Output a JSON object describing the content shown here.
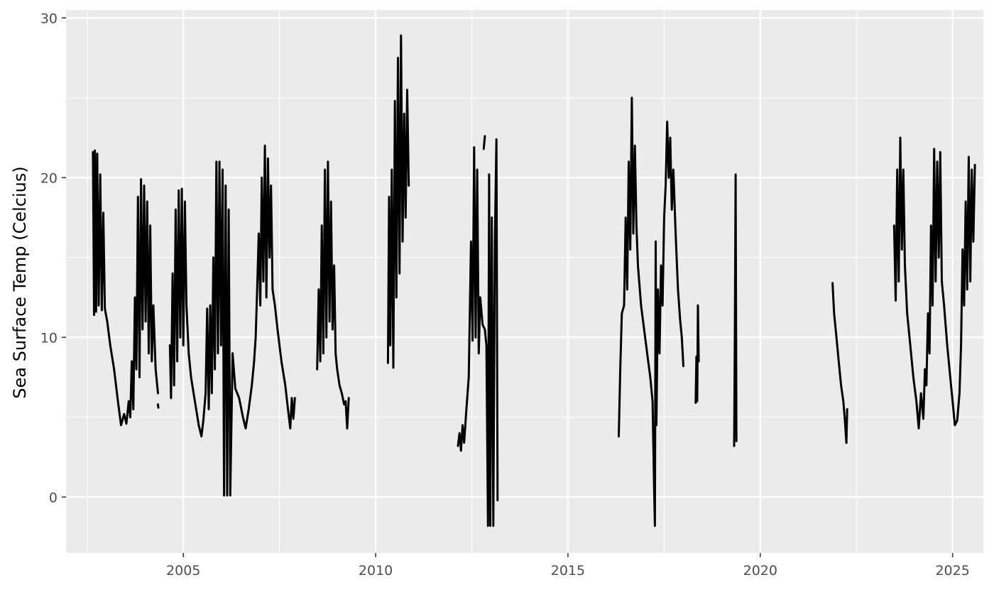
{
  "chart_data": {
    "type": "line",
    "title": "",
    "xlabel": "",
    "ylabel": "Sea Surface Temp (Celcius)",
    "xlim": [
      2001.95,
      2025.8
    ],
    "ylim": [
      -3.5,
      30.5
    ],
    "x_ticks": [
      2005,
      2010,
      2015,
      2020,
      2025
    ],
    "x_tick_labels": [
      "2005",
      "2010",
      "2015",
      "2020",
      "2025"
    ],
    "y_ticks": [
      0,
      10,
      20,
      30
    ],
    "y_tick_labels": [
      "0",
      "10",
      "20",
      "30"
    ],
    "grid": true,
    "legend": "none",
    "colors": {
      "panel": "#ebebeb",
      "grid": "#ffffff",
      "line": "#000000",
      "tick_text": "#4d4d4d"
    },
    "series": [
      {
        "segments": [
          [
            [
              2002.65,
              21.6
            ],
            [
              2002.68,
              11.4
            ],
            [
              2002.7,
              21.7
            ],
            [
              2002.73,
              11.6
            ],
            [
              2002.76,
              21.5
            ],
            [
              2002.8,
              12.0
            ],
            [
              2002.84,
              20.2
            ],
            [
              2002.88,
              11.7
            ],
            [
              2002.92,
              17.8
            ],
            [
              2002.96,
              11.8
            ],
            [
              2003.02,
              11.0
            ],
            [
              2003.1,
              9.5
            ],
            [
              2003.2,
              8.0
            ],
            [
              2003.3,
              6.0
            ],
            [
              2003.38,
              4.5
            ],
            [
              2003.46,
              5.2
            ],
            [
              2003.52,
              4.6
            ],
            [
              2003.58,
              6.0
            ],
            [
              2003.62,
              5.0
            ],
            [
              2003.66,
              8.5
            ],
            [
              2003.7,
              5.5
            ],
            [
              2003.74,
              12.5
            ],
            [
              2003.78,
              8.0
            ],
            [
              2003.82,
              18.8
            ],
            [
              2003.86,
              7.5
            ],
            [
              2003.9,
              19.9
            ],
            [
              2003.94,
              10.5
            ],
            [
              2003.98,
              19.5
            ],
            [
              2004.02,
              11.0
            ],
            [
              2004.06,
              18.5
            ],
            [
              2004.1,
              9.0
            ],
            [
              2004.14,
              17.0
            ],
            [
              2004.18,
              8.5
            ],
            [
              2004.22,
              12.0
            ],
            [
              2004.28,
              8.0
            ],
            [
              2004.34,
              6.5
            ]
          ],
          [
            [
              2004.34,
              5.8
            ],
            [
              2004.35,
              5.6
            ]
          ],
          [
            [
              2004.65,
              9.5
            ],
            [
              2004.68,
              6.2
            ],
            [
              2004.72,
              14.0
            ],
            [
              2004.76,
              7.0
            ],
            [
              2004.8,
              18.0
            ],
            [
              2004.84,
              8.5
            ],
            [
              2004.88,
              19.2
            ],
            [
              2004.92,
              10.0
            ],
            [
              2004.96,
              19.3
            ],
            [
              2005.0,
              9.5
            ],
            [
              2005.04,
              18.5
            ],
            [
              2005.08,
              12.0
            ],
            [
              2005.14,
              9.0
            ],
            [
              2005.2,
              7.5
            ],
            [
              2005.3,
              6.0
            ],
            [
              2005.4,
              4.5
            ],
            [
              2005.47,
              3.8
            ],
            [
              2005.52,
              4.8
            ],
            [
              2005.58,
              6.5
            ],
            [
              2005.62,
              11.8
            ],
            [
              2005.66,
              5.5
            ],
            [
              2005.7,
              12.0
            ],
            [
              2005.74,
              6.5
            ],
            [
              2005.78,
              15.0
            ],
            [
              2005.82,
              8.0
            ],
            [
              2005.86,
              21.0
            ],
            [
              2005.9,
              9.0
            ],
            [
              2005.94,
              21.0
            ],
            [
              2005.98,
              9.5
            ],
            [
              2006.02,
              20.5
            ],
            [
              2006.06,
              0.1
            ],
            [
              2006.1,
              19.5
            ],
            [
              2006.14,
              0.1
            ],
            [
              2006.18,
              18.0
            ],
            [
              2006.22,
              0.1
            ],
            [
              2006.28,
              9.0
            ],
            [
              2006.35,
              6.8
            ],
            [
              2006.45,
              6.2
            ],
            [
              2006.55,
              5.0
            ],
            [
              2006.62,
              4.3
            ],
            [
              2006.7,
              5.5
            ],
            [
              2006.78,
              7.0
            ],
            [
              2006.84,
              8.5
            ],
            [
              2006.88,
              10.0
            ],
            [
              2006.92,
              13.0
            ],
            [
              2006.96,
              16.5
            ],
            [
              2007.0,
              12.0
            ],
            [
              2007.04,
              20.0
            ],
            [
              2007.08,
              13.5
            ],
            [
              2007.12,
              22.0
            ],
            [
              2007.16,
              12.5
            ],
            [
              2007.2,
              21.2
            ],
            [
              2007.24,
              15.0
            ],
            [
              2007.28,
              19.5
            ],
            [
              2007.32,
              13.0
            ],
            [
              2007.38,
              12.0
            ],
            [
              2007.45,
              10.5
            ],
            [
              2007.55,
              8.5
            ],
            [
              2007.65,
              7.0
            ],
            [
              2007.72,
              5.5
            ],
            [
              2007.78,
              4.3
            ],
            [
              2007.82,
              6.2
            ],
            [
              2007.86,
              4.9
            ],
            [
              2007.9,
              6.2
            ]
          ],
          [
            [
              2008.48,
              8.0
            ],
            [
              2008.52,
              13.0
            ],
            [
              2008.56,
              8.5
            ],
            [
              2008.6,
              17.0
            ],
            [
              2008.64,
              9.0
            ],
            [
              2008.68,
              20.5
            ],
            [
              2008.72,
              10.0
            ],
            [
              2008.76,
              21.0
            ],
            [
              2008.8,
              11.0
            ],
            [
              2008.84,
              18.5
            ],
            [
              2008.88,
              10.5
            ],
            [
              2008.92,
              14.5
            ],
            [
              2008.96,
              9.0
            ],
            [
              2009.0,
              8.0
            ],
            [
              2009.06,
              7.0
            ],
            [
              2009.12,
              6.5
            ],
            [
              2009.18,
              5.8
            ],
            [
              2009.22,
              6.0
            ],
            [
              2009.26,
              4.3
            ],
            [
              2009.3,
              6.2
            ]
          ],
          [
            [
              2010.32,
              8.4
            ],
            [
              2010.35,
              18.8
            ],
            [
              2010.38,
              9.5
            ],
            [
              2010.42,
              20.5
            ],
            [
              2010.46,
              8.1
            ],
            [
              2010.5,
              24.8
            ],
            [
              2010.54,
              12.5
            ],
            [
              2010.58,
              27.5
            ],
            [
              2010.62,
              14.0
            ],
            [
              2010.66,
              28.9
            ],
            [
              2010.7,
              16.0
            ],
            [
              2010.74,
              24.0
            ],
            [
              2010.78,
              17.5
            ],
            [
              2010.82,
              25.5
            ],
            [
              2010.86,
              19.5
            ]
          ],
          [
            [
              2012.14,
              3.2
            ],
            [
              2012.18,
              4.0
            ],
            [
              2012.22,
              2.9
            ],
            [
              2012.26,
              4.5
            ],
            [
              2012.3,
              3.4
            ],
            [
              2012.36,
              5.5
            ],
            [
              2012.42,
              7.5
            ],
            [
              2012.48,
              16.0
            ],
            [
              2012.52,
              9.8
            ],
            [
              2012.56,
              21.9
            ],
            [
              2012.6,
              10.0
            ],
            [
              2012.64,
              20.5
            ],
            [
              2012.68,
              9.0
            ],
            [
              2012.72,
              12.5
            ],
            [
              2012.78,
              10.8
            ],
            [
              2012.84,
              10.5
            ],
            [
              2012.88,
              9.5
            ],
            [
              2012.92,
              -1.8
            ],
            [
              2012.95,
              20.2
            ],
            [
              2012.98,
              -1.8
            ],
            [
              2013.02,
              17.5
            ],
            [
              2013.06,
              -1.8
            ],
            [
              2013.1,
              16.0
            ],
            [
              2013.14,
              22.4
            ],
            [
              2013.17,
              -0.2
            ]
          ],
          [
            [
              2012.81,
              21.8
            ],
            [
              2012.84,
              22.6
            ]
          ],
          [
            [
              2016.32,
              3.8
            ],
            [
              2016.36,
              8.0
            ],
            [
              2016.4,
              11.5
            ],
            [
              2016.46,
              12.0
            ],
            [
              2016.5,
              17.5
            ],
            [
              2016.54,
              13.0
            ],
            [
              2016.58,
              21.0
            ],
            [
              2016.62,
              15.5
            ],
            [
              2016.66,
              25.0
            ],
            [
              2016.7,
              16.5
            ],
            [
              2016.74,
              22.0
            ],
            [
              2016.78,
              17.0
            ],
            [
              2016.82,
              14.5
            ],
            [
              2016.9,
              12.0
            ],
            [
              2016.98,
              10.5
            ],
            [
              2017.06,
              9.0
            ],
            [
              2017.14,
              7.5
            ],
            [
              2017.2,
              6.0
            ],
            [
              2017.24,
              0.5
            ],
            [
              2017.26,
              -1.8
            ],
            [
              2017.28,
              16.0
            ],
            [
              2017.3,
              4.5
            ],
            [
              2017.34,
              13.0
            ],
            [
              2017.38,
              9.0
            ],
            [
              2017.42,
              14.5
            ],
            [
              2017.46,
              12.0
            ],
            [
              2017.5,
              17.5
            ],
            [
              2017.54,
              19.5
            ],
            [
              2017.58,
              23.5
            ],
            [
              2017.62,
              20.0
            ],
            [
              2017.66,
              22.5
            ],
            [
              2017.7,
              18.0
            ],
            [
              2017.74,
              20.5
            ],
            [
              2017.8,
              16.5
            ],
            [
              2017.86,
              13.0
            ],
            [
              2017.92,
              11.0
            ],
            [
              2017.96,
              10.0
            ],
            [
              2018.0,
              8.2
            ]
          ],
          [
            [
              2018.32,
              5.9
            ],
            [
              2018.34,
              8.8
            ],
            [
              2018.36,
              6.0
            ],
            [
              2018.38,
              12.0
            ],
            [
              2018.4,
              8.5
            ]
          ],
          [
            [
              2019.32,
              3.2
            ],
            [
              2019.34,
              10.0
            ],
            [
              2019.36,
              20.2
            ],
            [
              2019.38,
              3.5
            ]
          ],
          [
            [
              2021.88,
              13.4
            ],
            [
              2021.92,
              11.5
            ],
            [
              2021.98,
              10.0
            ],
            [
              2022.04,
              8.5
            ],
            [
              2022.1,
              7.0
            ],
            [
              2022.16,
              6.0
            ],
            [
              2022.2,
              4.8
            ],
            [
              2022.24,
              3.4
            ],
            [
              2022.26,
              5.5
            ]
          ],
          [
            [
              2023.48,
              17.0
            ],
            [
              2023.52,
              12.3
            ],
            [
              2023.56,
              20.5
            ],
            [
              2023.6,
              13.5
            ],
            [
              2023.64,
              22.5
            ],
            [
              2023.68,
              15.5
            ],
            [
              2023.72,
              20.5
            ],
            [
              2023.76,
              14.5
            ],
            [
              2023.82,
              11.5
            ],
            [
              2023.9,
              9.5
            ],
            [
              2023.98,
              7.5
            ],
            [
              2024.06,
              6.0
            ],
            [
              2024.12,
              4.3
            ],
            [
              2024.18,
              6.5
            ],
            [
              2024.24,
              4.9
            ],
            [
              2024.28,
              8.0
            ],
            [
              2024.32,
              7.0
            ],
            [
              2024.36,
              11.5
            ],
            [
              2024.4,
              9.0
            ],
            [
              2024.44,
              17.0
            ],
            [
              2024.48,
              12.0
            ],
            [
              2024.52,
              21.8
            ],
            [
              2024.56,
              13.5
            ],
            [
              2024.6,
              21.0
            ],
            [
              2024.64,
              15.0
            ],
            [
              2024.68,
              21.6
            ],
            [
              2024.72,
              13.5
            ],
            [
              2024.78,
              12.0
            ],
            [
              2024.86,
              9.5
            ],
            [
              2024.94,
              7.5
            ],
            [
              2025.0,
              6.0
            ],
            [
              2025.06,
              4.5
            ],
            [
              2025.12,
              4.8
            ],
            [
              2025.18,
              6.5
            ],
            [
              2025.22,
              9.5
            ],
            [
              2025.26,
              15.5
            ],
            [
              2025.3,
              12.0
            ],
            [
              2025.34,
              18.5
            ],
            [
              2025.38,
              13.0
            ],
            [
              2025.42,
              21.3
            ],
            [
              2025.46,
              13.5
            ],
            [
              2025.5,
              20.5
            ],
            [
              2025.54,
              16.0
            ],
            [
              2025.58,
              20.8
            ]
          ]
        ]
      }
    ]
  }
}
